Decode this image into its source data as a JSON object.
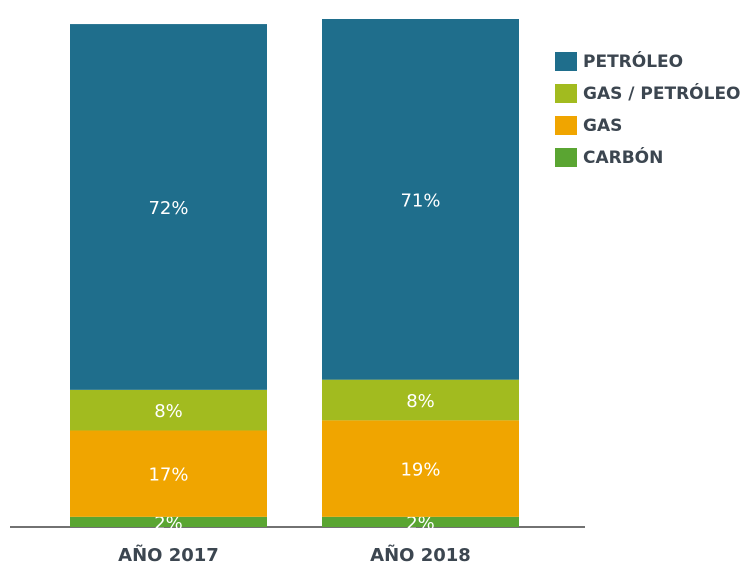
{
  "chart_data": {
    "type": "bar",
    "stacked": true,
    "categories": [
      "AÑO 2017",
      "AÑO 2018"
    ],
    "series": [
      {
        "name": "CARBÓN",
        "color": "#5aa532",
        "values": [
          2,
          2
        ],
        "value_labels": [
          "2%",
          "2%"
        ]
      },
      {
        "name": "GAS",
        "color": "#f0a500",
        "values": [
          17,
          19
        ],
        "value_labels": [
          "17%",
          "19%"
        ]
      },
      {
        "name": "GAS / PETRÓLEO",
        "color": "#a2bb1f",
        "values": [
          8,
          8
        ],
        "value_labels": [
          "8%",
          "8%"
        ]
      },
      {
        "name": "PETRÓLEO",
        "color": "#1f6e8c",
        "values": [
          72,
          71
        ],
        "value_labels": [
          "72%",
          "71%"
        ]
      }
    ],
    "ylim": [
      0,
      100
    ],
    "legend": "upper right"
  }
}
